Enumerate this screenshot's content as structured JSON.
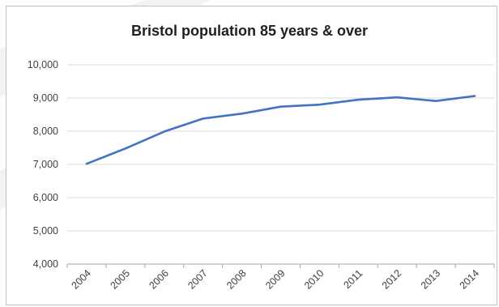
{
  "chart_data": {
    "type": "line",
    "title": "Bristol population 85 years & over",
    "xlabel": "",
    "ylabel": "",
    "categories": [
      "2004",
      "2005",
      "2006",
      "2007",
      "2008",
      "2009",
      "2010",
      "2011",
      "2012",
      "2013",
      "2014"
    ],
    "series": [
      {
        "values": [
          7020,
          7480,
          7990,
          8380,
          8530,
          8740,
          8800,
          8950,
          9020,
          8910,
          9060
        ]
      }
    ],
    "ylim": [
      4000,
      10000
    ],
    "yticks": [
      4000,
      5000,
      6000,
      7000,
      8000,
      9000,
      10000
    ],
    "ytick_labels": [
      "4,000",
      "5,000",
      "6,000",
      "7,000",
      "8,000",
      "9,000",
      "10,000"
    ],
    "grid": true,
    "legend": "none",
    "colors": {
      "line": "#4472c4",
      "grid": "#d9d9d9",
      "axis": "#a6a6a6"
    }
  }
}
